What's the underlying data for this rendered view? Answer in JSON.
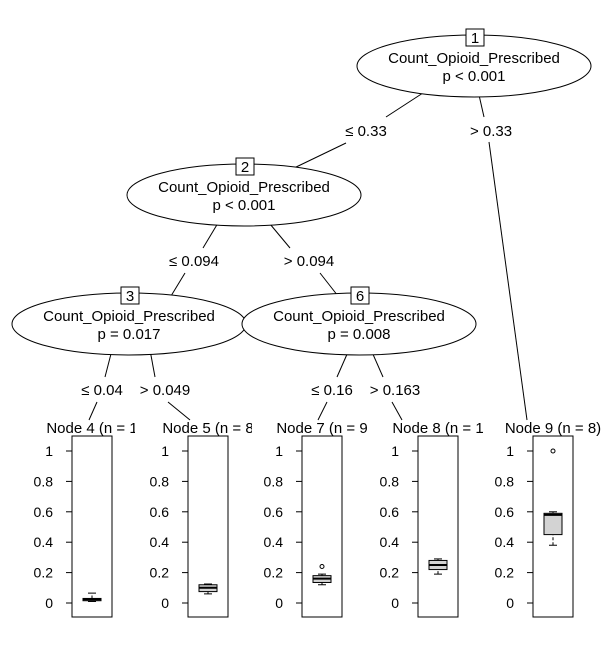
{
  "nodes": [
    {
      "id": "1",
      "variable": "Count_Opioid_Prescribed",
      "pvalue": "p < 0.001"
    },
    {
      "id": "2",
      "variable": "Count_Opioid_Prescribed",
      "pvalue": "p < 0.001"
    },
    {
      "id": "3",
      "variable": "Count_Opioid_Prescribed",
      "pvalue": "p = 0.017"
    },
    {
      "id": "6",
      "variable": "Count_Opioid_Prescribed",
      "pvalue": "p = 0.008"
    }
  ],
  "edges": [
    {
      "from": "1",
      "to": "2",
      "label": "≤ 0.33"
    },
    {
      "from": "1",
      "to": "9",
      "label": "> 0.33"
    },
    {
      "from": "2",
      "to": "3",
      "label": "≤ 0.094"
    },
    {
      "from": "2",
      "to": "6",
      "label": "> 0.094"
    },
    {
      "from": "3",
      "to": "4",
      "label": "≤ 0.04"
    },
    {
      "from": "3",
      "to": "5",
      "label": "> 0.049"
    },
    {
      "from": "6",
      "to": "7",
      "label": "≤ 0.16"
    },
    {
      "from": "6",
      "to": "8",
      "label": "> 0.163"
    }
  ],
  "terminal_axis": {
    "ylim": [
      0,
      1
    ],
    "ticks": [
      "0",
      "0.2",
      "0.4",
      "0.6",
      "0.8",
      "1"
    ]
  },
  "terminals": [
    {
      "id": "4",
      "title": "Node 4 (n = 1",
      "min": 0.01,
      "q1": 0.015,
      "median": 0.025,
      "q3": 0.03,
      "max": 0.065,
      "outliers": []
    },
    {
      "id": "5",
      "title": "Node 5 (n = 8",
      "min": 0.06,
      "q1": 0.075,
      "median": 0.1,
      "q3": 0.12,
      "max": 0.125,
      "outliers": []
    },
    {
      "id": "7",
      "title": "Node 7 (n = 9",
      "min": 0.12,
      "q1": 0.135,
      "median": 0.16,
      "q3": 0.18,
      "max": 0.19,
      "outliers": [
        0.24
      ]
    },
    {
      "id": "8",
      "title": "Node 8 (n = 1",
      "min": 0.19,
      "q1": 0.22,
      "median": 0.25,
      "q3": 0.28,
      "max": 0.29,
      "outliers": []
    },
    {
      "id": "9",
      "title": "Node 9 (n = 8)",
      "min": 0.38,
      "q1": 0.45,
      "median": 0.58,
      "q3": 0.59,
      "max": 0.6,
      "outliers": [
        1.0
      ]
    }
  ]
}
